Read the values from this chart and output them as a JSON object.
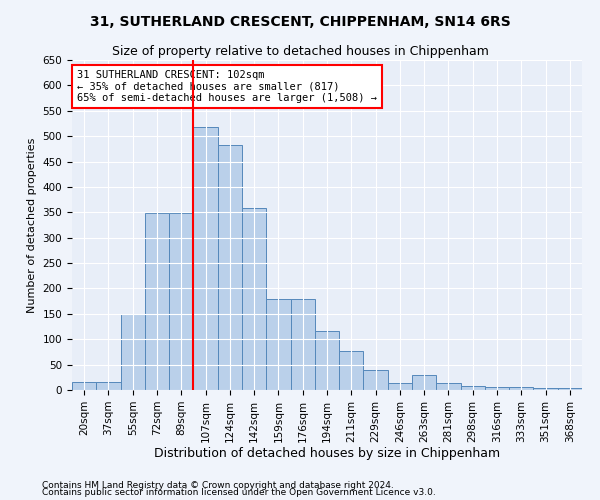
{
  "title1": "31, SUTHERLAND CRESCENT, CHIPPENHAM, SN14 6RS",
  "title2": "Size of property relative to detached houses in Chippenham",
  "xlabel": "Distribution of detached houses by size in Chippenham",
  "ylabel": "Number of detached properties",
  "categories": [
    "20sqm",
    "37sqm",
    "55sqm",
    "72sqm",
    "89sqm",
    "107sqm",
    "124sqm",
    "142sqm",
    "159sqm",
    "176sqm",
    "194sqm",
    "211sqm",
    "229sqm",
    "246sqm",
    "263sqm",
    "281sqm",
    "298sqm",
    "316sqm",
    "333sqm",
    "351sqm",
    "368sqm"
  ],
  "values": [
    15,
    15,
    150,
    348,
    348,
    518,
    483,
    358,
    180,
    180,
    116,
    76,
    40,
    13,
    30,
    13,
    8,
    5,
    5,
    3,
    3
  ],
  "bar_color": "#bad0ea",
  "bar_edge_color": "#5588bb",
  "vline_x_idx": 5,
  "vline_color": "red",
  "annotation_text": "31 SUTHERLAND CRESCENT: 102sqm\n← 35% of detached houses are smaller (817)\n65% of semi-detached houses are larger (1,508) →",
  "ylim": [
    0,
    650
  ],
  "yticks": [
    0,
    50,
    100,
    150,
    200,
    250,
    300,
    350,
    400,
    450,
    500,
    550,
    600,
    650
  ],
  "footnote1": "Contains HM Land Registry data © Crown copyright and database right 2024.",
  "footnote2": "Contains public sector information licensed under the Open Government Licence v3.0.",
  "bg_color": "#f0f4fb",
  "plot_bg_color": "#e8eef8",
  "title1_fontsize": 10,
  "title2_fontsize": 9,
  "ylabel_fontsize": 8,
  "xlabel_fontsize": 9,
  "tick_fontsize": 7.5,
  "annot_fontsize": 7.5,
  "footnote_fontsize": 6.5
}
